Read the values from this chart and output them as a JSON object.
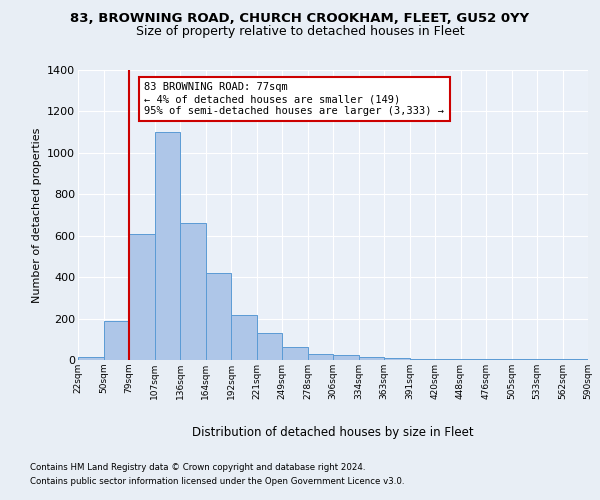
{
  "title1": "83, BROWNING ROAD, CHURCH CROOKHAM, FLEET, GU52 0YY",
  "title2": "Size of property relative to detached houses in Fleet",
  "xlabel": "Distribution of detached houses by size in Fleet",
  "ylabel": "Number of detached properties",
  "bar_values": [
    15,
    190,
    610,
    1100,
    660,
    420,
    215,
    130,
    65,
    30,
    25,
    15,
    10,
    5,
    5,
    5,
    5,
    5,
    5,
    5
  ],
  "bin_labels": [
    "22sqm",
    "50sqm",
    "79sqm",
    "107sqm",
    "136sqm",
    "164sqm",
    "192sqm",
    "221sqm",
    "249sqm",
    "278sqm",
    "306sqm",
    "334sqm",
    "363sqm",
    "391sqm",
    "420sqm",
    "448sqm",
    "476sqm",
    "505sqm",
    "533sqm",
    "562sqm",
    "590sqm"
  ],
  "bar_color": "#aec6e8",
  "bar_edge_color": "#5b9bd5",
  "vline_x": 1.5,
  "annotation_text_line1": "83 BROWNING ROAD: 77sqm",
  "annotation_text_line2": "← 4% of detached houses are smaller (149)",
  "annotation_text_line3": "95% of semi-detached houses are larger (3,333) →",
  "annotation_box_color": "#ffffff",
  "annotation_box_edge_color": "#cc0000",
  "vline_color": "#cc0000",
  "footnote1": "Contains HM Land Registry data © Crown copyright and database right 2024.",
  "footnote2": "Contains public sector information licensed under the Open Government Licence v3.0.",
  "ylim": [
    0,
    1400
  ],
  "yticks": [
    0,
    200,
    400,
    600,
    800,
    1000,
    1200,
    1400
  ],
  "bg_color": "#e8eef5",
  "plot_bg_color": "#eaf0f8"
}
